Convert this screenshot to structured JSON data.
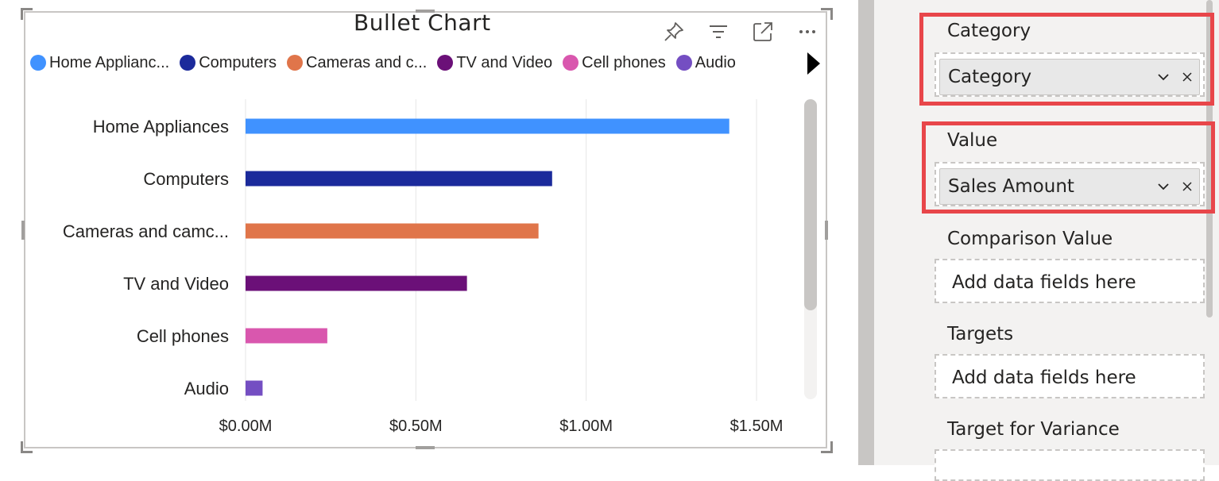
{
  "visual": {
    "title": "Bullet Chart",
    "header_icons": [
      "pin-icon",
      "filter-icon",
      "focus-mode-icon",
      "more-options-icon"
    ]
  },
  "legend": {
    "items": [
      {
        "label": "Home Applianc...",
        "color": "#4092FF"
      },
      {
        "label": "Computers",
        "color": "#1B2A9B"
      },
      {
        "label": "Cameras and c...",
        "color": "#E0754A"
      },
      {
        "label": "TV and Video",
        "color": "#6B1078"
      },
      {
        "label": "Cell phones",
        "color": "#D957AE"
      },
      {
        "label": "Audio",
        "color": "#744EC2"
      }
    ]
  },
  "chart_data": {
    "type": "bar",
    "orientation": "horizontal",
    "title": "Bullet Chart",
    "categories": [
      "Home Appliances",
      "Computers",
      "Cameras and camc...",
      "TV and Video",
      "Cell phones",
      "Audio"
    ],
    "values": [
      1.42,
      0.9,
      0.86,
      0.65,
      0.24,
      0.05
    ],
    "colors": [
      "#4092FF",
      "#1B2A9B",
      "#E0754A",
      "#6B1078",
      "#D957AE",
      "#744EC2"
    ],
    "xlim": [
      0,
      1.5
    ],
    "xticks": [
      0,
      0.5,
      1.0,
      1.5
    ],
    "xtick_labels": [
      "$0.00M",
      "$0.50M",
      "$1.00M",
      "$1.50M"
    ],
    "grid": true,
    "legend_position": "top-left"
  },
  "fields": {
    "category": {
      "label": "Category",
      "field": "Category"
    },
    "value": {
      "label": "Value",
      "field": "Sales Amount"
    },
    "comparison": {
      "label": "Comparison Value",
      "placeholder": "Add data fields here"
    },
    "targets": {
      "label": "Targets",
      "placeholder": "Add data fields here"
    },
    "target_variance": {
      "label": "Target for Variance"
    }
  },
  "colors": {
    "highlight": "#E8464A"
  }
}
